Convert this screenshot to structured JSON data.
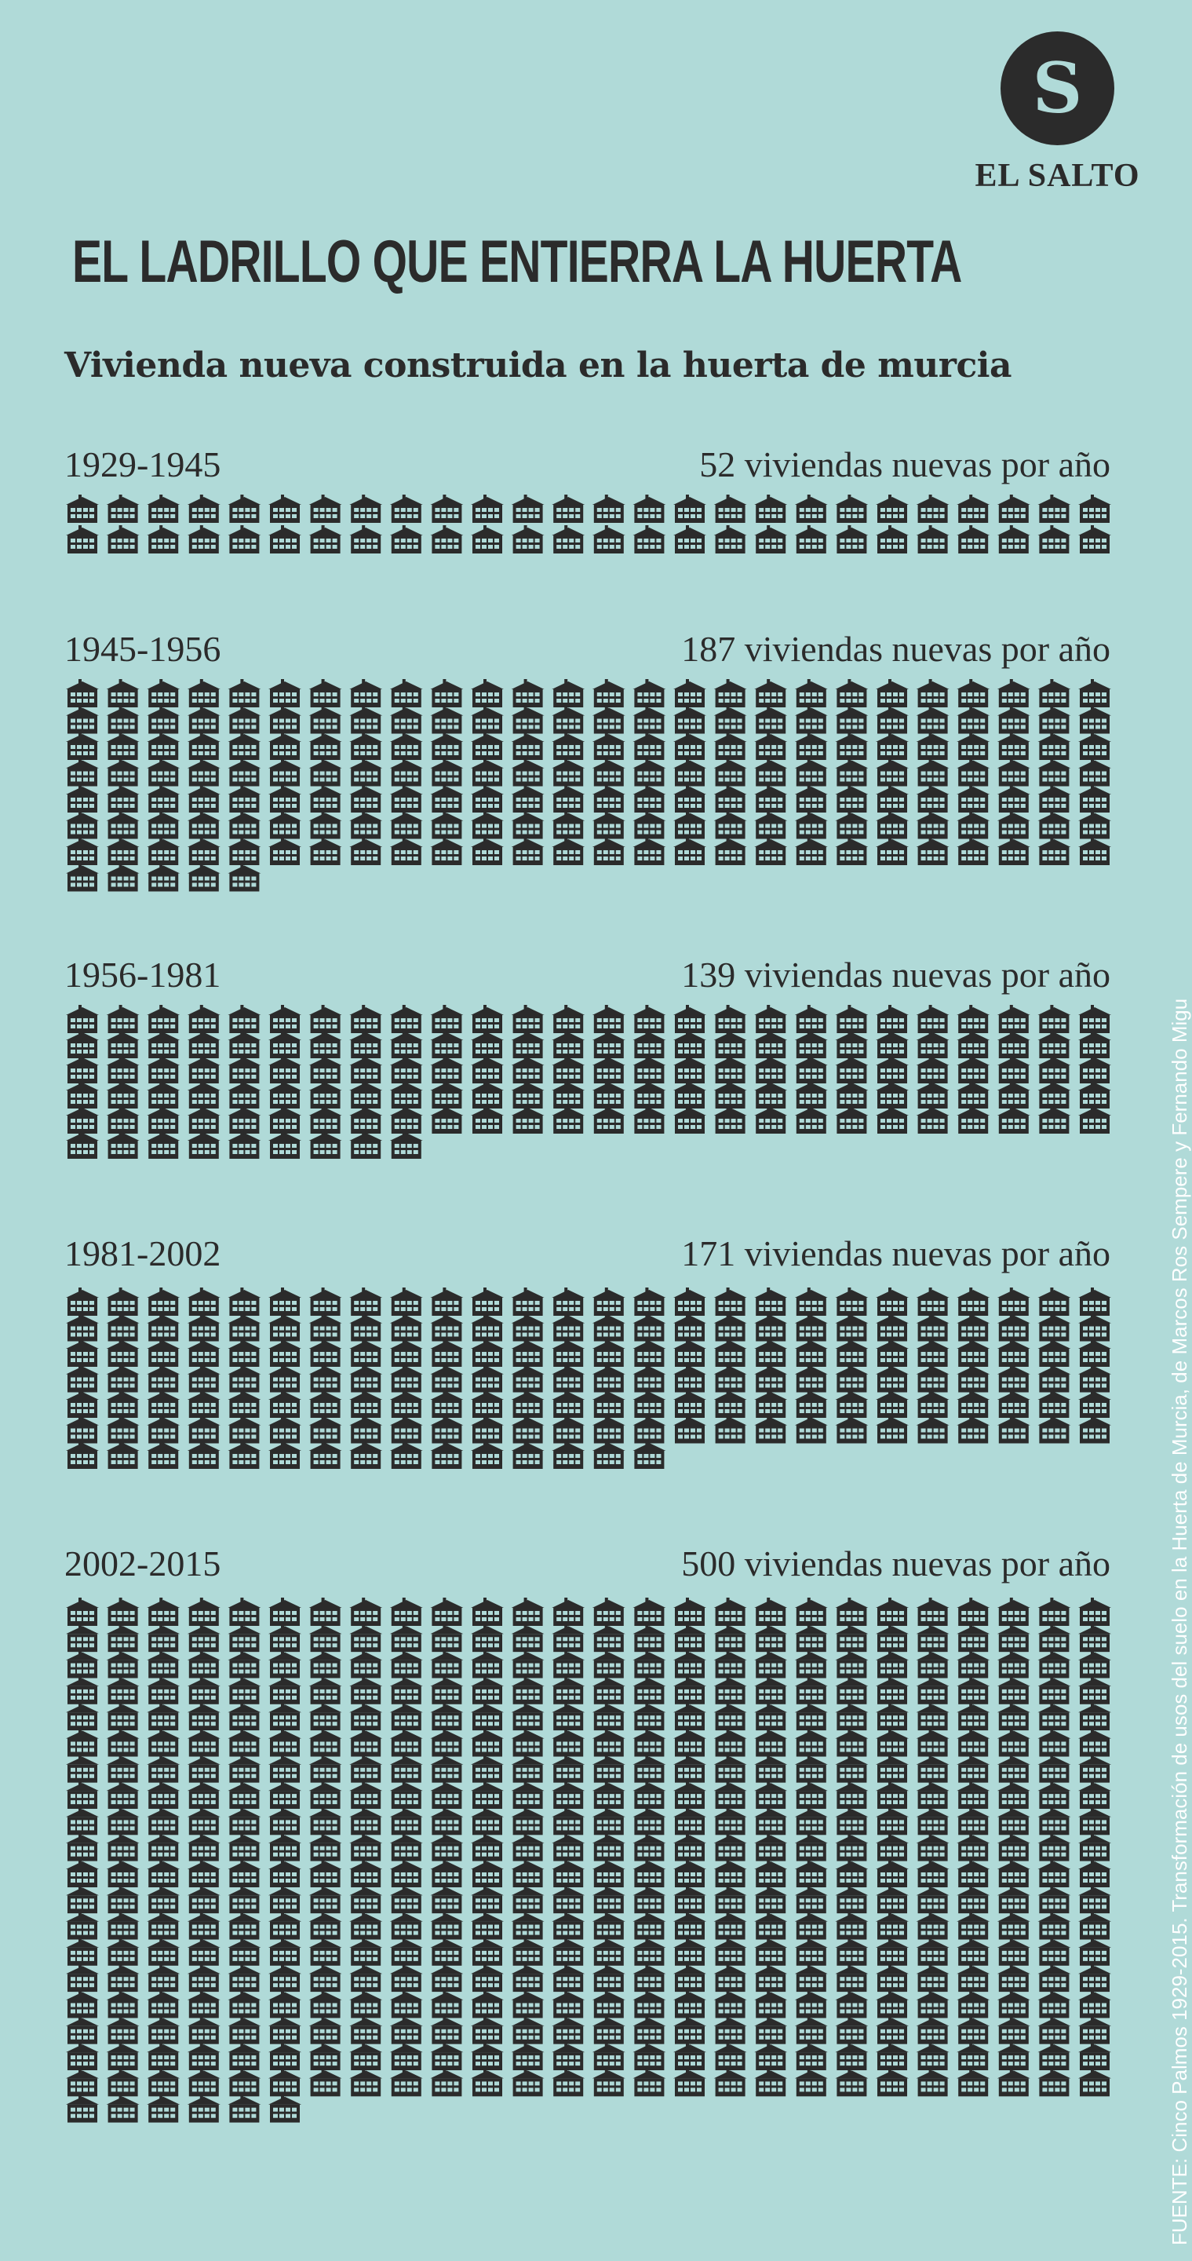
{
  "brand": {
    "logo_letter": "S",
    "name": "EL SALTO"
  },
  "title": "EL LADRILLO QUE ENTIERRA LA HUERTA",
  "subtitle": "Vivienda nueva construida en la huerta de murcia",
  "source": "FUENTE: Cinco Palmos 1929-2015. Transformación de usos del suelo en la Huerta de Murcia, de Marcos Ros Sempere y Fernando Migu",
  "colors": {
    "background": "#b0dad8",
    "ink": "#2b2b2b"
  },
  "chart_data": {
    "type": "pictograph",
    "icon": "house-icon",
    "series": [
      {
        "period": "1929-1945",
        "rate_label": "52 viviendas nuevas por año",
        "value": 52,
        "unit": "viviendas nuevas por año"
      },
      {
        "period": "1945-1956",
        "rate_label": "187 viviendas nuevas por año",
        "value": 187,
        "unit": "viviendas nuevas por año"
      },
      {
        "period": "1956-1981",
        "rate_label": "139 viviendas nuevas por año",
        "value": 139,
        "unit": "viviendas nuevas por año"
      },
      {
        "period": "1981-2002",
        "rate_label": "171 viviendas nuevas por año",
        "value": 171,
        "unit": "viviendas nuevas por año"
      },
      {
        "period": "2002-2015",
        "rate_label": "500 viviendas nuevas por año",
        "value": 500,
        "unit": "viviendas nuevas por año"
      }
    ]
  }
}
